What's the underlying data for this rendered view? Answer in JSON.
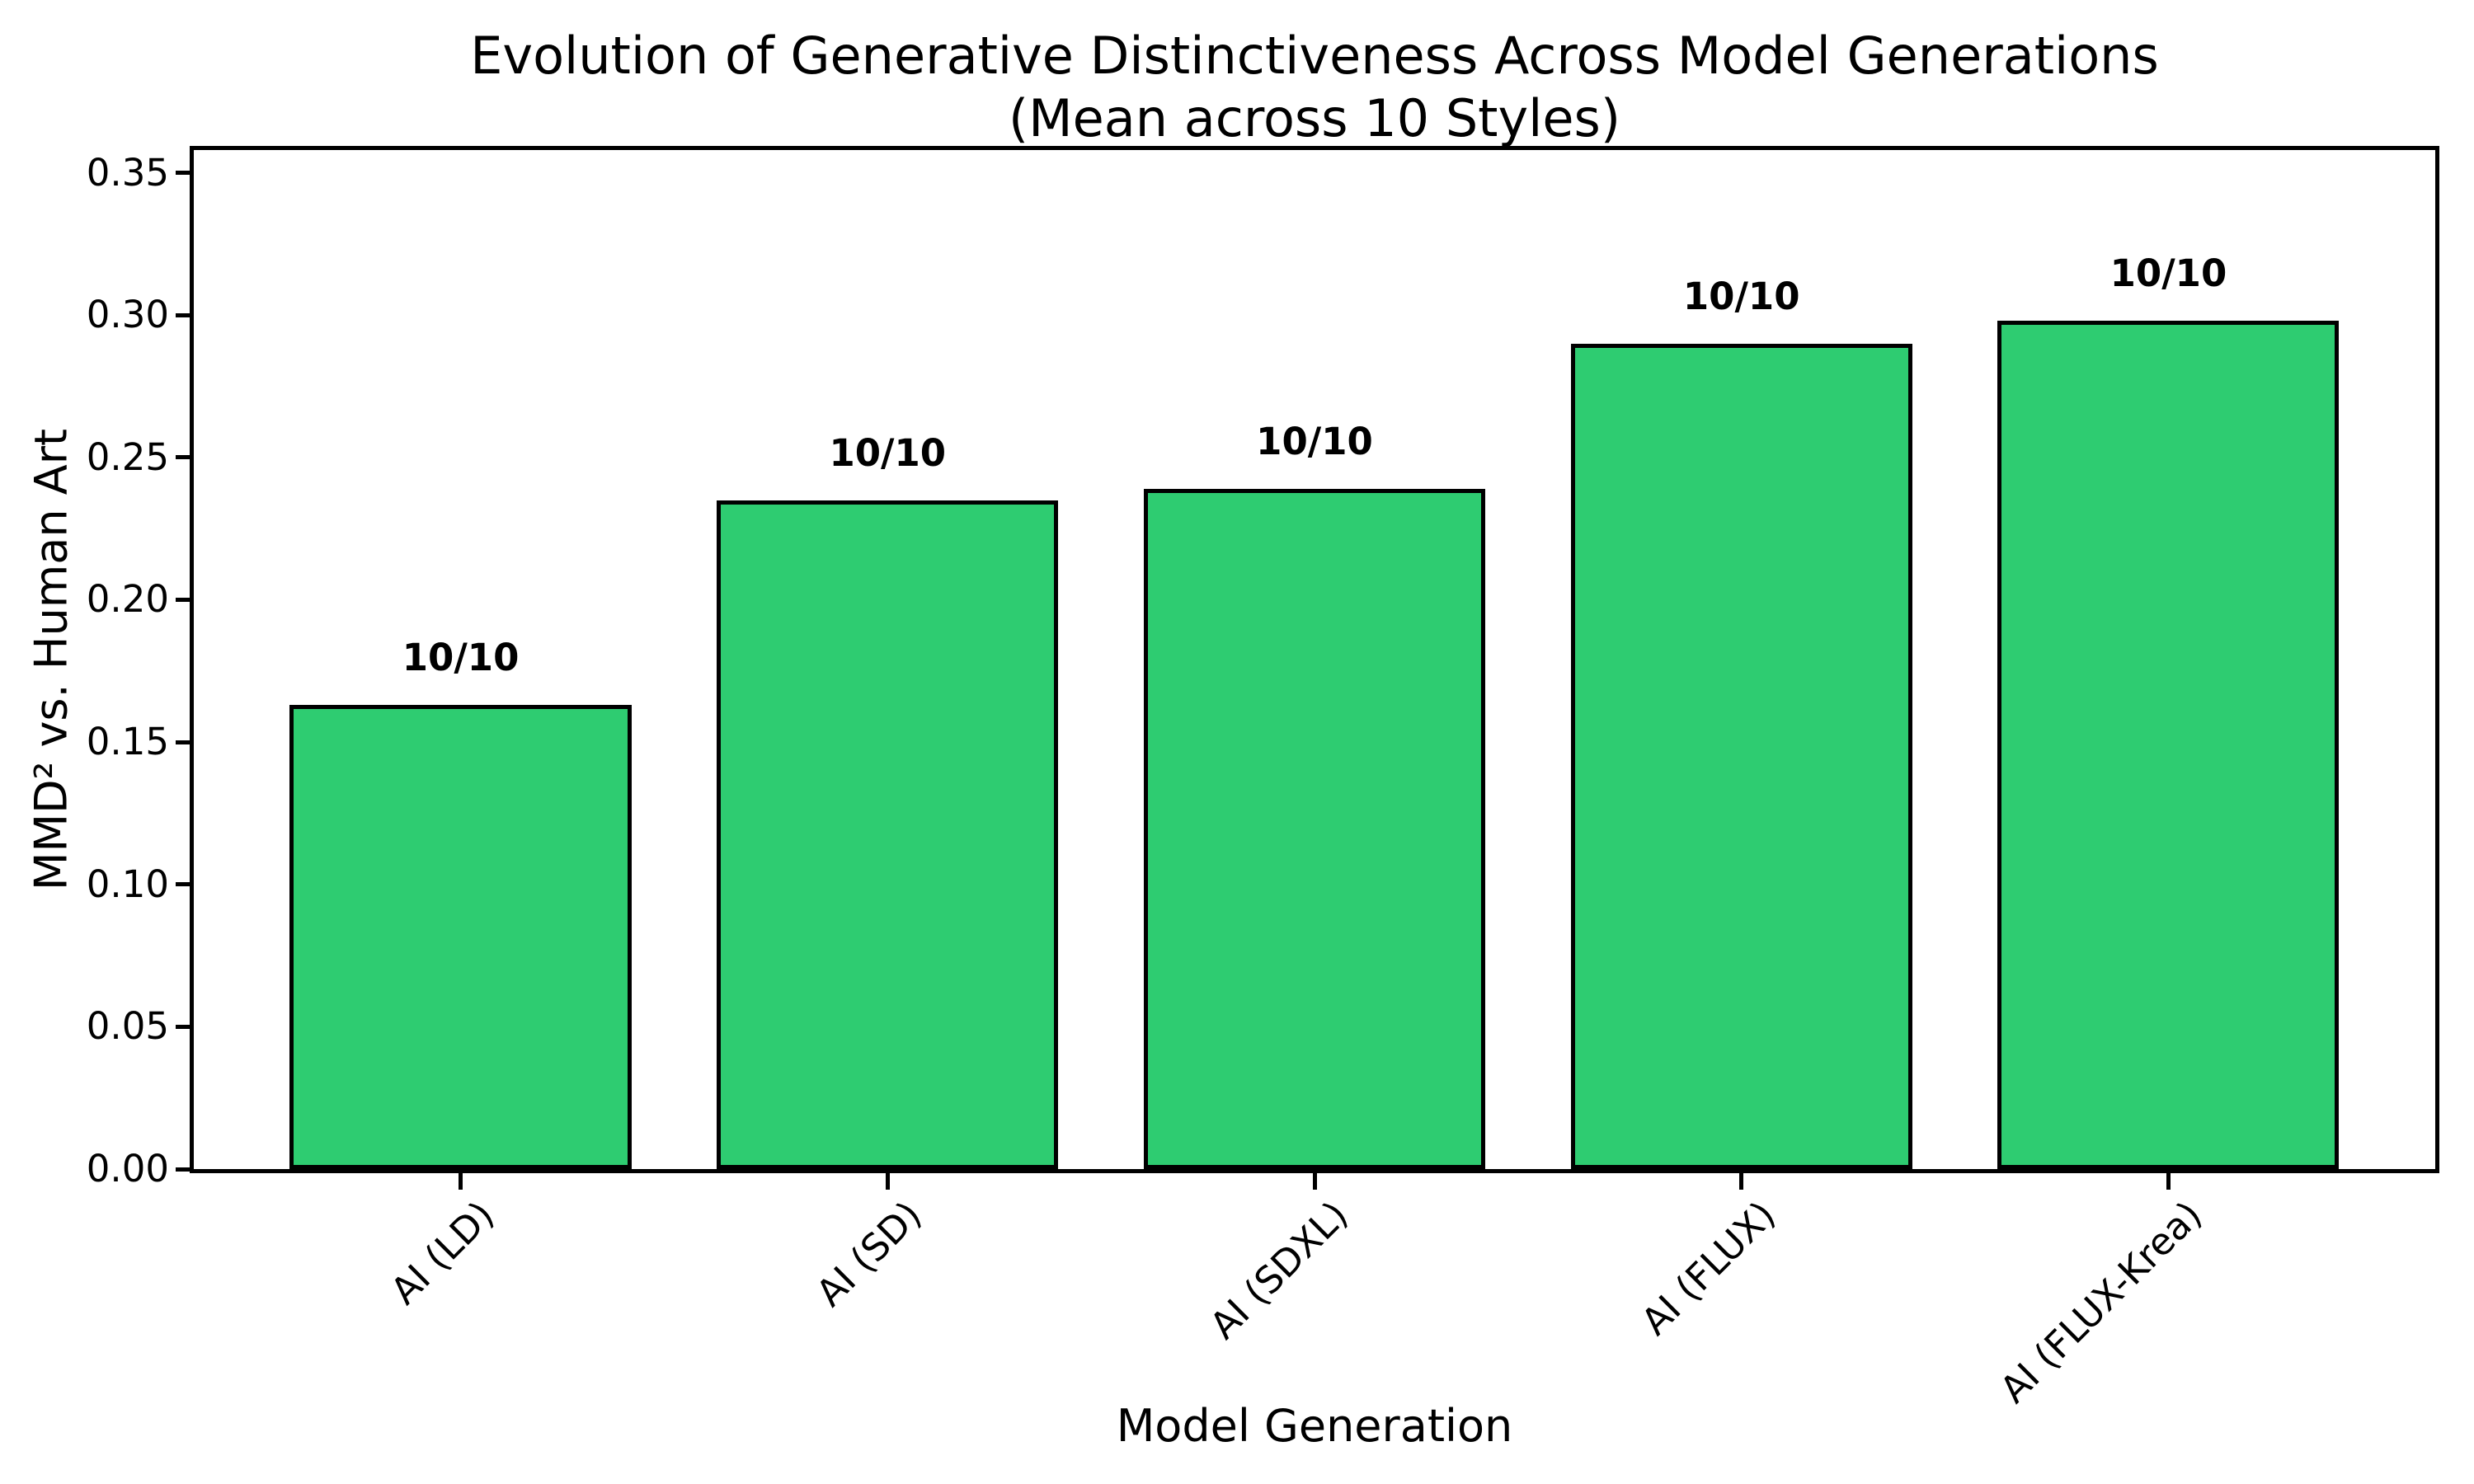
{
  "chart_data": {
    "type": "bar",
    "title": "Evolution of Generative Distinctiveness Across Model Generations",
    "subtitle": "(Mean across 10 Styles)",
    "xlabel": "Model Generation",
    "ylabel": "MMD² vs. Human Art",
    "categories": [
      "AI (LD)",
      "AI (SD)",
      "AI (SDXL)",
      "AI (FLUX)",
      "AI (FLUX-Krea)"
    ],
    "values": [
      0.163,
      0.235,
      0.239,
      0.29,
      0.298
    ],
    "bar_labels": [
      "10/10",
      "10/10",
      "10/10",
      "10/10",
      "10/10"
    ],
    "yticks": [
      {
        "value": 0.0,
        "label": "0.00"
      },
      {
        "value": 0.05,
        "label": "0.05"
      },
      {
        "value": 0.1,
        "label": "0.10"
      },
      {
        "value": 0.15,
        "label": "0.15"
      },
      {
        "value": 0.2,
        "label": "0.20"
      },
      {
        "value": 0.25,
        "label": "0.25"
      },
      {
        "value": 0.3,
        "label": "0.30"
      },
      {
        "value": 0.35,
        "label": "0.35"
      }
    ],
    "ylim": [
      0,
      0.358
    ],
    "grid": false,
    "legend": false,
    "colors": {
      "bar_fill": "#2ecc71",
      "bar_edge": "#000000",
      "text": "#000000",
      "background": "#ffffff"
    }
  }
}
